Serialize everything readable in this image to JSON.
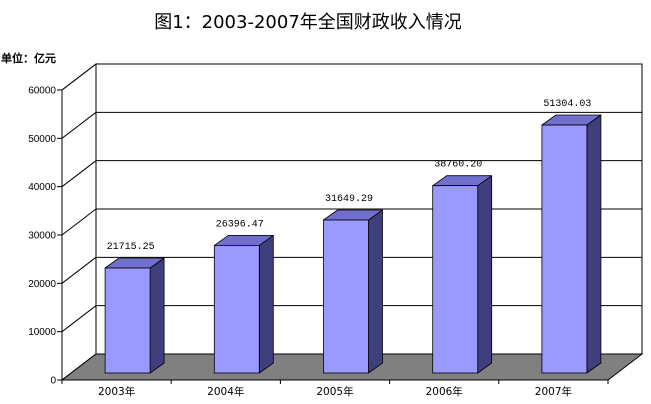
{
  "chart_data": {
    "type": "bar",
    "three_d": true,
    "title": "图1：2003-2007年全国财政收入情况",
    "ylabel": "单位：亿元",
    "categories": [
      "2003年",
      "2004年",
      "2005年",
      "2006年",
      "2007年"
    ],
    "values": [
      21715.25,
      26396.47,
      31649.29,
      38760.2,
      51304.03
    ],
    "data_labels": [
      "21715.25",
      "26396.47",
      "31649.29",
      "38760.20",
      "51304.03"
    ],
    "ylim": [
      0,
      60000
    ],
    "yticks": [
      0,
      10000,
      20000,
      30000,
      40000,
      50000,
      60000
    ],
    "grid": true,
    "colors": {
      "bar_front": "#9999ff",
      "bar_top": "#7070cc",
      "bar_side": "#3f3f7e",
      "floor": "#808080",
      "wall": "#ffffff"
    }
  }
}
